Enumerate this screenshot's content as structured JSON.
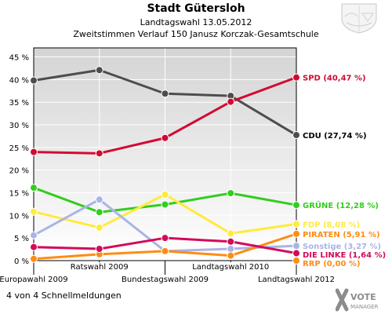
{
  "header": {
    "title": "Stadt Gütersloh",
    "subtitle1": "Landtagswahl 13.05.2012",
    "subtitle2": "Zweitstimmen Verlauf 150 Janusz Korczak-Gesamtschule"
  },
  "footer": {
    "status": "4 von 4 Schnellmeldungen",
    "logo_text_1": "VOTE",
    "logo_text_2": "MANAGER"
  },
  "crest": {
    "icon": "coat-of-arms-icon"
  },
  "chart_data": {
    "type": "line",
    "categories": [
      "Europawahl 2009",
      "Ratswahl 2009",
      "Bundestagswahl 2009",
      "Landtagswahl 2010",
      "Landtagswahl 2012"
    ],
    "ylim": [
      0,
      47
    ],
    "yticks": [
      "0 %",
      "5 %",
      "10 %",
      "15 %",
      "20 %",
      "25 %",
      "30 %",
      "35 %",
      "40 %",
      "45 %"
    ],
    "grid": true,
    "series": [
      {
        "name": "CDU",
        "label": "CDU (27,74 %)",
        "color": "#4d4d4d",
        "label_color": "#000000",
        "values": [
          39.8,
          42.1,
          36.9,
          36.4,
          27.74
        ]
      },
      {
        "name": "SPD",
        "label": "SPD (40,47 %)",
        "color": "#d20a32",
        "label_color": "#d20a32",
        "values": [
          24.0,
          23.7,
          27.1,
          35.1,
          40.47
        ]
      },
      {
        "name": "GRÜNE",
        "label": "GRÜNE (12,28 %)",
        "color": "#32cd1e",
        "label_color": "#32cd1e",
        "values": [
          16.1,
          10.7,
          12.4,
          14.9,
          12.28
        ]
      },
      {
        "name": "FDP",
        "label": "FDP (8,08 %)",
        "color": "#ffeb3c",
        "label_color": "#ffeb3c",
        "values": [
          10.8,
          7.3,
          14.6,
          6.0,
          8.08
        ]
      },
      {
        "name": "Sonstige",
        "label": "Sonstige (3,27 %)",
        "color": "#aab4e6",
        "label_color": "#aab4e6",
        "values": [
          5.6,
          13.5,
          2.1,
          2.6,
          3.27
        ]
      },
      {
        "name": "PIRATEN",
        "label": "PIRATEN (5,91 %)",
        "color": "#ff8c14",
        "label_color": "#ff8c14",
        "values": [
          0.4,
          1.4,
          2.1,
          1.1,
          5.91
        ]
      },
      {
        "name": "DIE LINKE",
        "label": "DIE LINKE (1,64 %)",
        "color": "#d20a5a",
        "label_color": "#d20a5a",
        "values": [
          3.0,
          2.6,
          5.0,
          4.2,
          1.64
        ]
      },
      {
        "name": "RRP",
        "label": "RRP (0,00 %)",
        "color": "#ff8c14",
        "label_color": "#ff8c14",
        "values": [
          null,
          null,
          null,
          null,
          0.0
        ]
      }
    ]
  }
}
